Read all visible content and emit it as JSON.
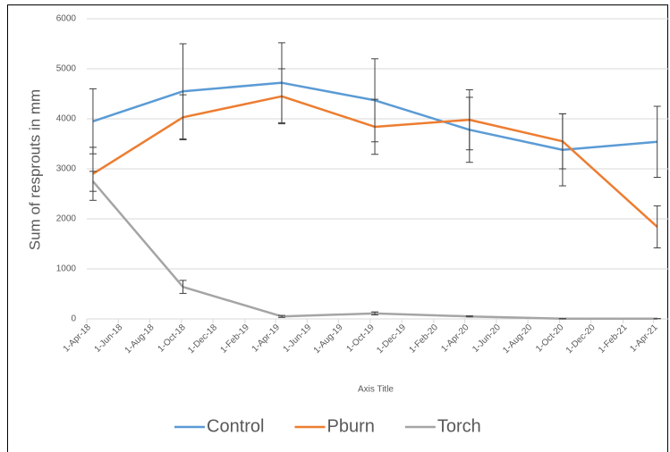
{
  "chart_data": {
    "type": "line",
    "x_label": "Axis Title",
    "y_label": "Sum of resprouts in mm",
    "x": [
      "2018-04-13",
      "2018-10-04",
      "2019-04-13",
      "2019-10-10",
      "2020-04-10",
      "2020-10-07",
      "2021-04-08"
    ],
    "series": [
      {
        "name": "Control",
        "color": "#5b9bd5",
        "values": [
          3950,
          4550,
          4720,
          4370,
          3780,
          3380,
          3540
        ],
        "errors": [
          650,
          950,
          800,
          830,
          650,
          720,
          710
        ]
      },
      {
        "name": "Pburn",
        "color": "#ed7d31",
        "values": [
          2900,
          4030,
          4450,
          3840,
          3980,
          3550,
          1840
        ],
        "errors": [
          530,
          450,
          550,
          550,
          600,
          550,
          420
        ]
      },
      {
        "name": "Torch",
        "color": "#a5a5a5",
        "values": [
          2750,
          640,
          50,
          110,
          50,
          5,
          5
        ],
        "errors": [
          200,
          130,
          20,
          30,
          10,
          0,
          0
        ]
      }
    ],
    "xlim": [
      "2018-04-01",
      "2021-05-01"
    ],
    "xticks": [
      {
        "value": "2018-04-01",
        "label": "1-Apr-18"
      },
      {
        "value": "2018-06-01",
        "label": "1-Jun-18"
      },
      {
        "value": "2018-08-01",
        "label": "1-Aug-18"
      },
      {
        "value": "2018-10-01",
        "label": "1-Oct-18"
      },
      {
        "value": "2018-12-01",
        "label": "1-Dec-18"
      },
      {
        "value": "2019-02-01",
        "label": "1-Feb-19"
      },
      {
        "value": "2019-04-01",
        "label": "1-Apr-19"
      },
      {
        "value": "2019-06-01",
        "label": "1-Jun-19"
      },
      {
        "value": "2019-08-01",
        "label": "1-Aug-19"
      },
      {
        "value": "2019-10-01",
        "label": "1-Oct-19"
      },
      {
        "value": "2019-12-01",
        "label": "1-Dec-19"
      },
      {
        "value": "2020-02-01",
        "label": "1-Feb-20"
      },
      {
        "value": "2020-04-01",
        "label": "1-Apr-20"
      },
      {
        "value": "2020-06-01",
        "label": "1-Jun-20"
      },
      {
        "value": "2020-08-01",
        "label": "1-Aug-20"
      },
      {
        "value": "2020-10-01",
        "label": "1-Oct-20"
      },
      {
        "value": "2020-12-01",
        "label": "1-Dec-20"
      },
      {
        "value": "2021-02-01",
        "label": "1-Feb-21"
      },
      {
        "value": "2021-04-01",
        "label": "1-Apr-21"
      }
    ],
    "ylim": [
      0,
      6000
    ],
    "yticks": [
      0,
      1000,
      2000,
      3000,
      4000,
      5000,
      6000
    ],
    "grid": true,
    "legend": "bottom"
  }
}
